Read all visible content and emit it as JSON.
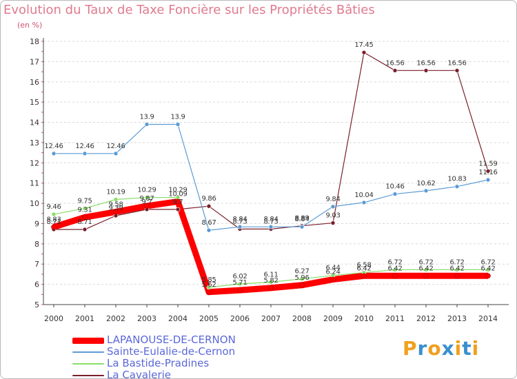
{
  "title": "Evolution du Taux de Taxe Foncière sur les Propriétés Bâties",
  "subtitle": "(en %)",
  "logo": {
    "text": "Proxiti",
    "colors": [
      "#f0a020",
      "#3a8fd0",
      "#f0a020",
      "#3a8fd0",
      "#f0a020",
      "#3a8fd0",
      "#f0a020"
    ]
  },
  "chart_data": {
    "type": "line",
    "title": "Evolution du Taux de Taxe Foncière sur les Propriétés Bâties",
    "ylabel": "(en %)",
    "x": [
      2000,
      2001,
      2002,
      2003,
      2004,
      2005,
      2006,
      2007,
      2008,
      2009,
      2010,
      2011,
      2012,
      2013,
      2014
    ],
    "ylim": [
      5,
      18
    ],
    "yticks": [
      5,
      6,
      7,
      8,
      9,
      10,
      11,
      12,
      13,
      14,
      15,
      16,
      17,
      18
    ],
    "grid": "horizontal dashed",
    "legend_position": "bottom-left",
    "series": [
      {
        "name": "LAPANOUSE-DE-CERNON",
        "color": "#ff0000",
        "values": [
          8.83,
          9.31,
          9.58,
          9.87,
          10.09,
          5.62,
          5.71,
          5.82,
          5.96,
          6.24,
          6.42,
          6.42,
          6.42,
          6.42,
          6.42
        ],
        "labels": [
          "8.83",
          "9.31",
          "9.58",
          "9.87",
          "10.09",
          "5.62",
          "5.71",
          "5.82",
          "5.96",
          "6.24",
          "6.42",
          "6.42",
          "6.42",
          "6.42",
          "6.42"
        ]
      },
      {
        "name": "Sainte-Eulalie-de-Cernon",
        "color": "#5b9bd5",
        "values": [
          12.46,
          12.46,
          12.46,
          13.9,
          13.9,
          8.67,
          8.84,
          8.84,
          8.84,
          9.84,
          10.04,
          10.46,
          10.62,
          10.83,
          11.16
        ],
        "labels": [
          "12.46",
          "12.46",
          "12.46",
          "13.9",
          "13.9",
          "8.67",
          "8.84",
          "8.84",
          "8.84",
          "9.84",
          "10.04",
          "10.46",
          "10.62",
          "10.83",
          "11.16"
        ]
      },
      {
        "name": "La Bastide-Pradines",
        "color": "#88dd66",
        "values": [
          9.46,
          9.75,
          10.19,
          10.29,
          10.29,
          5.85,
          6.02,
          6.11,
          6.27,
          6.44,
          6.58,
          6.72,
          6.72,
          6.72,
          6.72
        ],
        "labels": [
          "9.46",
          "9.75",
          "10.19",
          "10.29",
          "10.29",
          "5.85",
          "6.02",
          "6.11",
          "6.27",
          "6.44",
          "6.58",
          "6.72",
          "6.72",
          "6.72",
          "6.72"
        ]
      },
      {
        "name": "La Cavalerie",
        "color": "#7a1f2a",
        "values": [
          8.71,
          8.71,
          9.39,
          9.7,
          9.7,
          9.86,
          8.73,
          8.73,
          8.89,
          9.03,
          17.45,
          16.56,
          16.56,
          16.56,
          11.59
        ],
        "labels": [
          "8.71",
          "8.71",
          "9.39",
          "9.7",
          "9.7",
          "9.86",
          "8.73",
          "8.73",
          "8.89",
          "9.03",
          "17.45",
          "16.56",
          "16.56",
          "16.56",
          "11.59"
        ]
      }
    ]
  }
}
